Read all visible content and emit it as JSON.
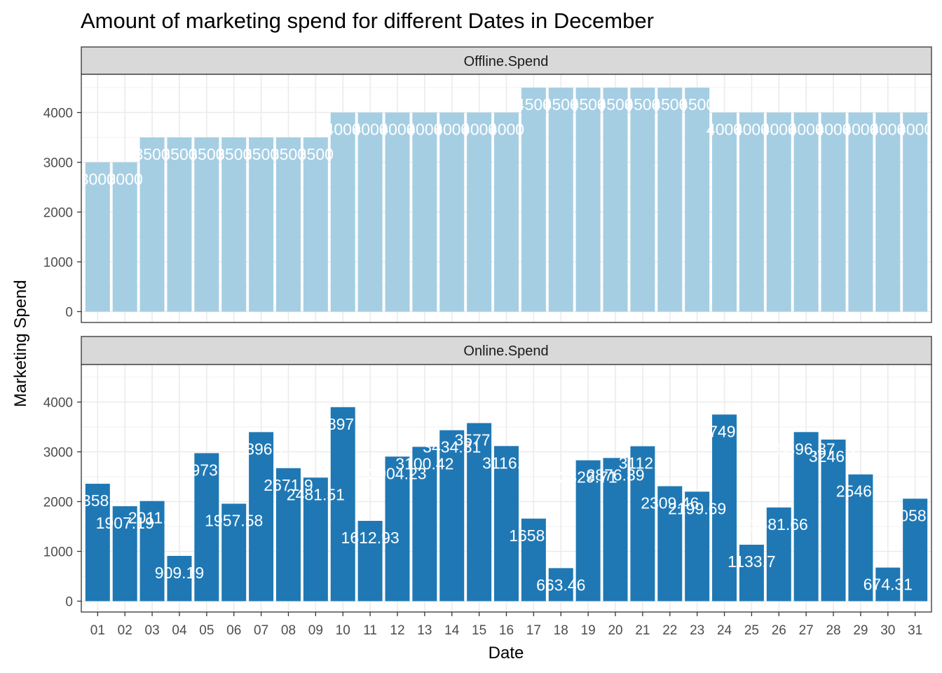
{
  "chart_data": {
    "type": "bar",
    "title": "Amount of marketing spend for different Dates in December",
    "xlabel": "Date",
    "ylabel": "Marketing Spend",
    "categories": [
      "01",
      "02",
      "03",
      "04",
      "05",
      "06",
      "07",
      "08",
      "09",
      "10",
      "11",
      "12",
      "13",
      "14",
      "15",
      "16",
      "17",
      "18",
      "19",
      "20",
      "21",
      "22",
      "23",
      "24",
      "25",
      "26",
      "27",
      "28",
      "29",
      "30",
      "31"
    ],
    "ylim": [
      0,
      4700
    ],
    "yticks": [
      0,
      1000,
      2000,
      3000,
      4000
    ],
    "grid": true,
    "facets": [
      {
        "name": "Offline.Spend",
        "color": "#a6cee3",
        "values": [
          3000,
          3000,
          3500,
          3500,
          3500,
          3500,
          3500,
          3500,
          3500,
          4000,
          4000,
          4000,
          4000,
          4000,
          4000,
          4000,
          4500,
          4500,
          4500,
          4500,
          4500,
          4500,
          4500,
          4000,
          4000,
          4000,
          4000,
          4000,
          4000,
          4000,
          4000
        ],
        "labels": [
          "3000",
          "3000",
          "3500",
          "3500",
          "3500",
          "3500",
          "3500",
          "3500",
          "3500",
          "4000",
          "4000",
          "4000",
          "4000",
          "4000",
          "4000",
          "4000",
          "4500",
          "4500",
          "4500",
          "4500",
          "4500",
          "4500",
          "4500",
          "4000",
          "4000",
          "4000",
          "4000",
          "4000",
          "4000",
          "4000",
          "4000"
        ]
      },
      {
        "name": "Online.Spend",
        "color": "#1f78b4",
        "values": [
          2358.4,
          1907.19,
          2011.4,
          909.19,
          2973.1,
          1957.58,
          3396.1,
          2671.9,
          2481.51,
          3897.8,
          1612.93,
          2904.23,
          3100.42,
          3434.31,
          3577.4,
          3116.1,
          1658.4,
          663.46,
          2829.71,
          2876.39,
          3112.1,
          2309.46,
          2199.69,
          3749.1,
          1133.7,
          1881.66,
          3396.87,
          3246.1,
          2546.1,
          674.31,
          2058.4
        ],
        "labels": [
          "2358.4",
          "1907.19",
          "2011.4",
          "909.19",
          "2973.1",
          "1957.58",
          "3396.1",
          "2671.9",
          "2481.51",
          "3897.8",
          "1612.93",
          "2904.23",
          "3100.42",
          "3434.31",
          "3577.4",
          "3116.1",
          "1658.4",
          "663.46",
          "2829.71",
          "2876.39",
          "3112.1",
          "2309.46",
          "2199.69",
          "3749.1",
          "1133.7",
          "1881.66",
          "3396.87",
          "3246.1",
          "2546.1",
          "674.31",
          "2058.4"
        ]
      }
    ]
  }
}
